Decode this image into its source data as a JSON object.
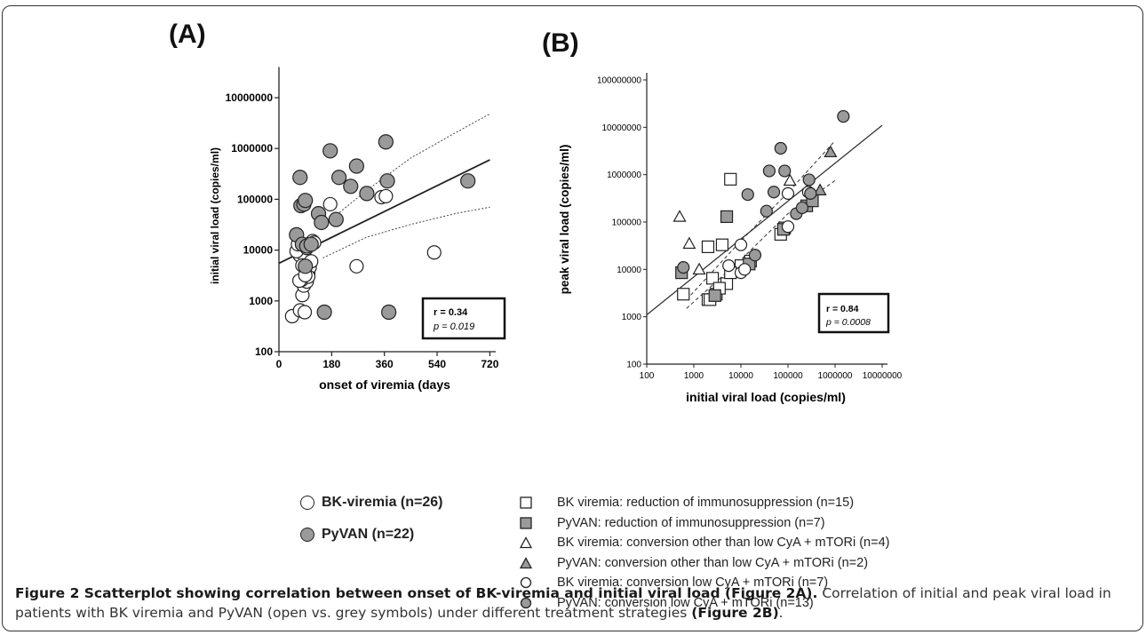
{
  "panels": {
    "a_label": "(A)",
    "b_label": "(B)"
  },
  "colors": {
    "open": "#ffffff",
    "grey": "#9a9a9a",
    "stroke": "#222222"
  },
  "chart_data": [
    {
      "type": "scatter",
      "panel": "A",
      "xlabel": "onset of viremia (days",
      "ylabel": "initial viral load (copies/ml)",
      "x_ticks": [
        0,
        180,
        360,
        540,
        720
      ],
      "y_ticks": [
        100,
        1000,
        10000,
        100000,
        1000000,
        10000000
      ],
      "y_tick_labels": [
        "100",
        "1000",
        "10000",
        "100000",
        "1000000",
        "10000000"
      ],
      "xlim": [
        0,
        740
      ],
      "ylim": [
        100,
        40000000
      ],
      "y_scale": "log",
      "stats": {
        "r": "r = 0.34",
        "p": "p = 0.019"
      },
      "series": [
        {
          "name": "BK-viremia (n=26)",
          "style": "open-circle",
          "points": [
            [
              45,
              500
            ],
            [
              72,
              650
            ],
            [
              80,
              1300
            ],
            [
              85,
              2000
            ],
            [
              95,
              2400
            ],
            [
              100,
              3500
            ],
            [
              105,
              4600
            ],
            [
              70,
              8000
            ],
            [
              90,
              7000
            ],
            [
              110,
              6000
            ],
            [
              60,
              9500
            ],
            [
              95,
              11000
            ],
            [
              115,
              15000
            ],
            [
              78,
              2600
            ],
            [
              88,
              600
            ],
            [
              175,
              80000
            ],
            [
              265,
              4800
            ],
            [
              350,
              110000
            ],
            [
              365,
              115000
            ],
            [
              530,
              9000
            ],
            [
              65,
              13000
            ],
            [
              100,
              3000
            ],
            [
              80,
              5000
            ],
            [
              70,
              2500
            ],
            [
              90,
              3200
            ],
            [
              120,
              14000
            ]
          ]
        },
        {
          "name": "PyVAN (n=22)",
          "style": "grey-circle",
          "points": [
            [
              60,
              20000
            ],
            [
              72,
              270000
            ],
            [
              75,
              75000
            ],
            [
              85,
              80000
            ],
            [
              90,
              95000
            ],
            [
              80,
              13000
            ],
            [
              95,
              12000
            ],
            [
              90,
              4800
            ],
            [
              135,
              52000
            ],
            [
              145,
              35000
            ],
            [
              155,
              600
            ],
            [
              175,
              900000
            ],
            [
              195,
              40000
            ],
            [
              205,
              270000
            ],
            [
              245,
              180000
            ],
            [
              265,
              450000
            ],
            [
              300,
              130000
            ],
            [
              365,
              1350000
            ],
            [
              370,
              230000
            ],
            [
              375,
              600
            ],
            [
              645,
              230000
            ],
            [
              110,
              13000
            ]
          ]
        }
      ],
      "regression": {
        "from": [
          0,
          5500
        ],
        "to": [
          720,
          600000
        ]
      },
      "band_upper": [
        [
          150,
          30000
        ],
        [
          300,
          150000
        ],
        [
          450,
          650000
        ],
        [
          600,
          2000000
        ],
        [
          720,
          4800000
        ]
      ],
      "band_lower": [
        [
          150,
          7000
        ],
        [
          300,
          18000
        ],
        [
          450,
          32000
        ],
        [
          600,
          52000
        ],
        [
          720,
          70000
        ]
      ]
    },
    {
      "type": "scatter",
      "panel": "B",
      "xlabel": "initial viral load (copies/ml)",
      "ylabel": "peak viral load (copies/ml)",
      "x_ticks": [
        100,
        1000,
        10000,
        100000,
        1000000,
        10000000
      ],
      "x_tick_labels": [
        "100",
        "1000",
        "10000",
        "100000",
        "1000000",
        "10000000"
      ],
      "y_ticks": [
        100,
        1000,
        10000,
        100000,
        1000000,
        10000000,
        100000000
      ],
      "y_tick_labels": [
        "100",
        "1000",
        "10000",
        "100000",
        "1000000",
        "10000000",
        "100000000"
      ],
      "x_scale": "log",
      "y_scale": "log",
      "stats": {
        "r": "r = 0.84",
        "p": "p = 0.0008"
      },
      "series": [
        {
          "name": "BK viremia: reduction of immunosuppression (n=15)",
          "style": "open-square",
          "points": [
            [
              600,
              3000
            ],
            [
              2000,
              2300
            ],
            [
              2200,
              2300
            ],
            [
              2500,
              6500
            ],
            [
              3000,
              3000
            ],
            [
              5000,
              5000
            ],
            [
              2000,
              30000
            ],
            [
              4000,
              33000
            ],
            [
              6000,
              800000
            ],
            [
              16000,
              15000
            ],
            [
              70000,
              55000
            ],
            [
              85000,
              75000
            ],
            [
              10000,
              12000
            ],
            [
              6000,
              8500
            ],
            [
              3500,
              4000
            ]
          ]
        },
        {
          "name": "PyVAN: reduction of immunosuppression (n=7)",
          "style": "grey-square",
          "points": [
            [
              550,
              8500
            ],
            [
              2800,
              2800
            ],
            [
              5000,
              130000
            ],
            [
              15000,
              13000
            ],
            [
              80000,
              70000
            ],
            [
              250000,
              220000
            ],
            [
              330000,
              280000
            ]
          ]
        },
        {
          "name": "BK viremia: conversion other than low CyA + mTORi (n=4)",
          "style": "open-triangle",
          "points": [
            [
              500,
              130000
            ],
            [
              800,
              35000
            ],
            [
              1300,
              10000
            ],
            [
              110000,
              750000
            ]
          ]
        },
        {
          "name": "PyVAN: conversion other than low CyA + mTORi (n=2)",
          "style": "grey-triangle",
          "points": [
            [
              480000,
              470000
            ],
            [
              800000,
              3000000
            ]
          ]
        },
        {
          "name": "BK viremia: conversion low CyA + mTORi (n=7)",
          "style": "open-circle",
          "points": [
            [
              5500,
              12000
            ],
            [
              10000,
              8500
            ],
            [
              10000,
              33000
            ],
            [
              100000,
              80000
            ],
            [
              100000,
              400000
            ],
            [
              270000,
              430000
            ],
            [
              12000,
              10000
            ]
          ]
        },
        {
          "name": "PyVAN: conversion low CyA + mTORi (n=13)",
          "style": "grey-circle",
          "points": [
            [
              600,
              11000
            ],
            [
              14000,
              380000
            ],
            [
              20000,
              20000
            ],
            [
              35000,
              170000
            ],
            [
              40000,
              1200000
            ],
            [
              50000,
              430000
            ],
            [
              70000,
              3600000
            ],
            [
              85000,
              1200000
            ],
            [
              150000,
              150000
            ],
            [
              200000,
              200000
            ],
            [
              280000,
              780000
            ],
            [
              300000,
              400000
            ],
            [
              1500000,
              17000000
            ]
          ]
        }
      ],
      "regression": {
        "from": [
          100,
          1100
        ],
        "to": [
          10000000,
          11000000
        ]
      },
      "band_upper": [
        [
          700,
          2300
        ],
        [
          10000,
          40000
        ],
        [
          100000,
          420000
        ],
        [
          1000000,
          5200000
        ]
      ],
      "band_lower": [
        [
          700,
          1500
        ],
        [
          10000,
          16000
        ],
        [
          100000,
          150000
        ],
        [
          1000000,
          750000
        ]
      ]
    }
  ],
  "legend_a": [
    {
      "label": "BK-viremia (n=26)",
      "fill": "#ffffff"
    },
    {
      "label": "PyVAN (n=22)",
      "fill": "#9a9a9a"
    }
  ],
  "legend_b": [
    {
      "label": "BK viremia: reduction of immunosuppression (n=15)",
      "shape": "square",
      "fill": "#ffffff"
    },
    {
      "label": "PyVAN: reduction of immunosuppression (n=7)",
      "shape": "square",
      "fill": "#9a9a9a"
    },
    {
      "label": "BK viremia: conversion other than low CyA + mTORi (n=4)",
      "shape": "triangle",
      "fill": "#ffffff"
    },
    {
      "label": "PyVAN: conversion other than low CyA + mTORi (n=2)",
      "shape": "triangle",
      "fill": "#9a9a9a"
    },
    {
      "label": "BK viremia: conversion low CyA + mTORi (n=7)",
      "shape": "circle",
      "fill": "#ffffff"
    },
    {
      "label": "PyVAN: conversion low CyA + mTORi (n=13)",
      "shape": "circle",
      "fill": "#9a9a9a"
    }
  ],
  "caption": {
    "bold1": "Figure 2 Scatterplot showing correlation between onset of BK-viremia and initial viral load (Figure 2A).",
    "text1": " Correlation of initial and peak viral load in patients with BK viremia and PyVAN (open vs. grey symbols) under different treatment strategies ",
    "bold2": "(Figure 2B)",
    "text2": "."
  }
}
